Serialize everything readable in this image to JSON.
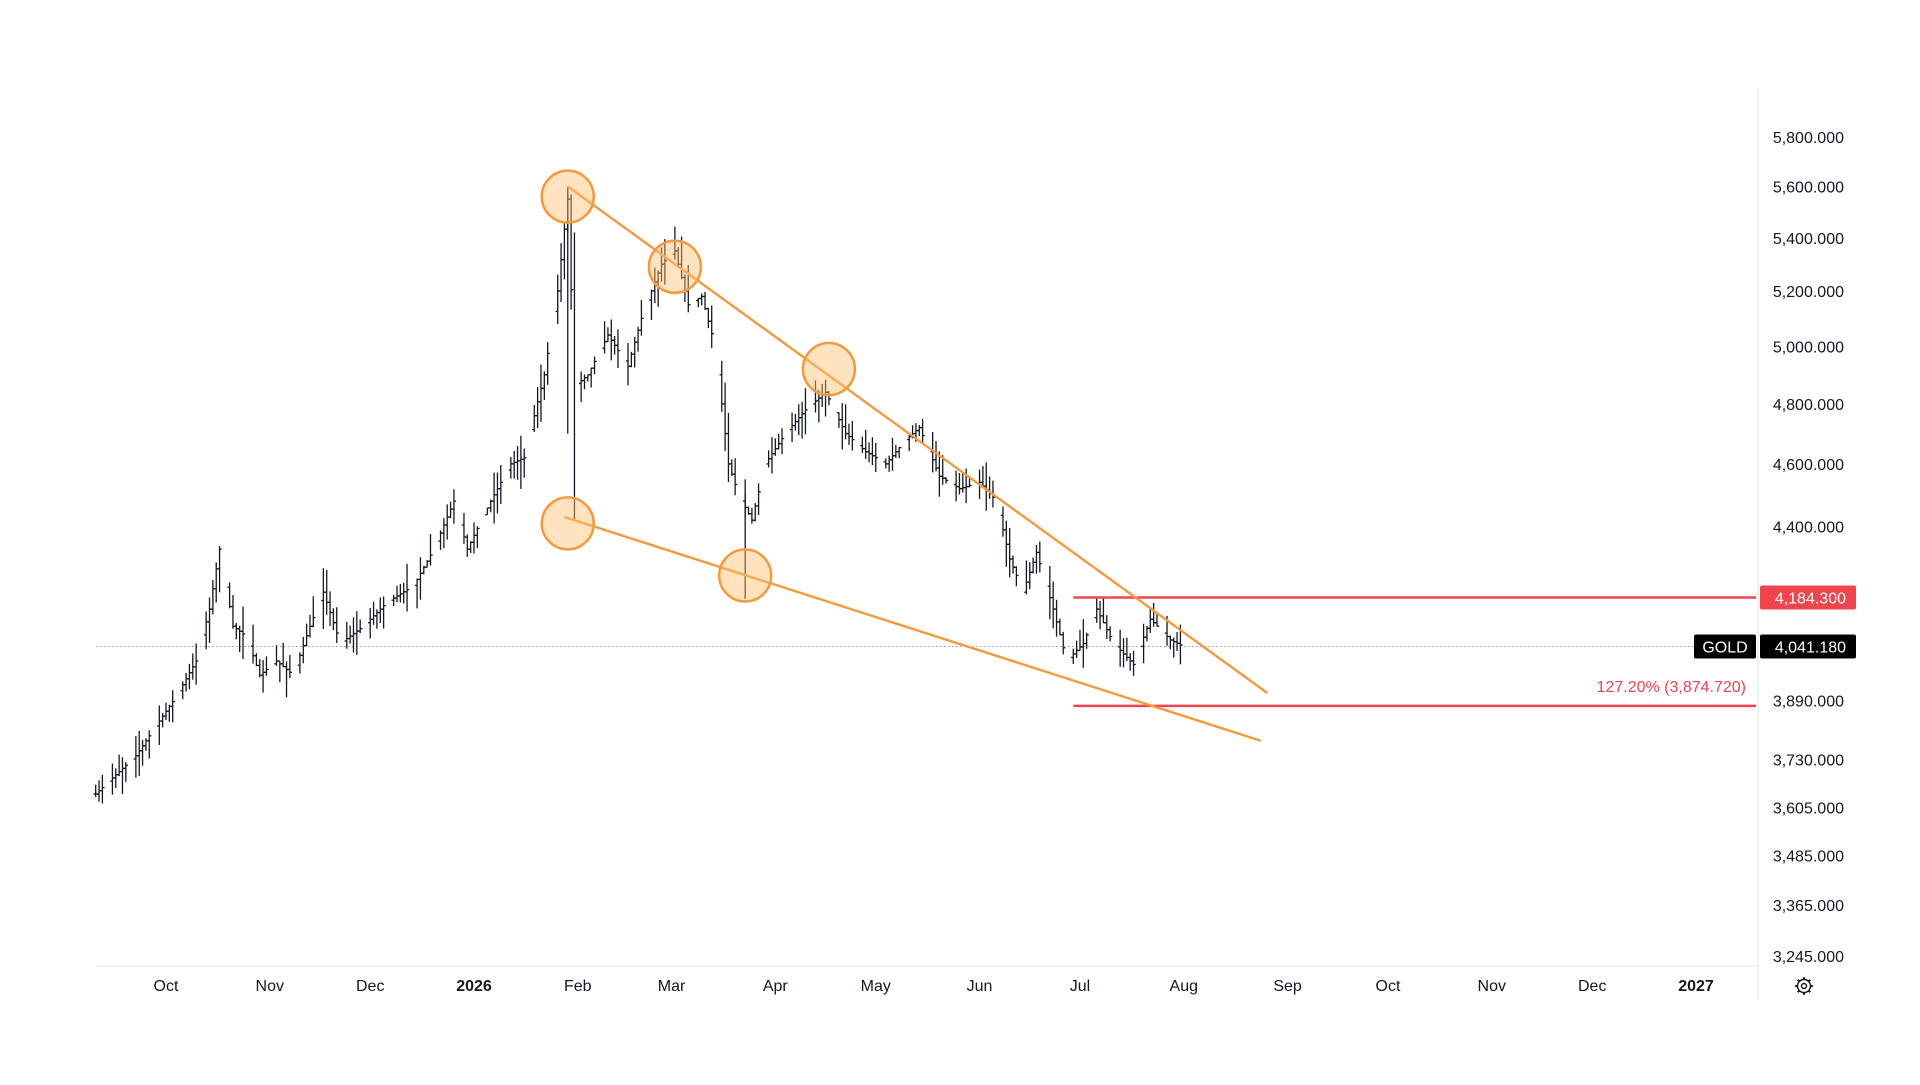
{
  "chart_data": {
    "type": "ohlc",
    "symbol": "GOLD",
    "price_scale": "log",
    "y_ticks": [
      "5,800.000",
      "5,600.000",
      "5,400.000",
      "5,200.000",
      "5,000.000",
      "4,800.000",
      "4,600.000",
      "4,400.000",
      "3,890.000",
      "3,730.000",
      "3,605.000",
      "3,485.000",
      "3,365.000",
      "3,245.000"
    ],
    "y_tick_values": [
      5800,
      5600,
      5400,
      5200,
      5000,
      4800,
      4600,
      4400,
      3890,
      3730,
      3605,
      3485,
      3365,
      3245
    ],
    "x_ticks": [
      {
        "label": "Oct",
        "date": "2025-10-01",
        "bold": false
      },
      {
        "label": "Nov",
        "date": "2025-11-01",
        "bold": false
      },
      {
        "label": "Dec",
        "date": "2025-12-01",
        "bold": false
      },
      {
        "label": "2026",
        "date": "2026-01-01",
        "bold": true
      },
      {
        "label": "Feb",
        "date": "2026-02-01",
        "bold": false
      },
      {
        "label": "Mar",
        "date": "2026-03-01",
        "bold": false
      },
      {
        "label": "Apr",
        "date": "2026-04-01",
        "bold": false
      },
      {
        "label": "May",
        "date": "2026-05-01",
        "bold": false
      },
      {
        "label": "Jun",
        "date": "2026-06-01",
        "bold": false
      },
      {
        "label": "Jul",
        "date": "2026-07-01",
        "bold": false
      },
      {
        "label": "Aug",
        "date": "2026-08-01",
        "bold": false
      },
      {
        "label": "Sep",
        "date": "2026-09-01",
        "bold": false
      },
      {
        "label": "Oct",
        "date": "2026-10-01",
        "bold": false
      },
      {
        "label": "Nov",
        "date": "2026-11-01",
        "bold": false
      },
      {
        "label": "Dec",
        "date": "2026-12-01",
        "bold": false
      },
      {
        "label": "2027",
        "date": "2027-01-01",
        "bold": true
      }
    ],
    "price_path": [
      [
        "2025-09-10",
        3640
      ],
      [
        "2025-09-16",
        3690
      ],
      [
        "2025-09-22",
        3740
      ],
      [
        "2025-09-28",
        3820
      ],
      [
        "2025-10-04",
        3900
      ],
      [
        "2025-10-10",
        4000
      ],
      [
        "2025-10-14",
        4150
      ],
      [
        "2025-10-17",
        4330
      ],
      [
        "2025-10-21",
        4100
      ],
      [
        "2025-10-25",
        4070
      ],
      [
        "2025-10-29",
        3960
      ],
      [
        "2025-11-03",
        4000
      ],
      [
        "2025-11-08",
        3960
      ],
      [
        "2025-11-13",
        4100
      ],
      [
        "2025-11-17",
        4200
      ],
      [
        "2025-11-22",
        4050
      ],
      [
        "2025-11-29",
        4100
      ],
      [
        "2025-12-06",
        4170
      ],
      [
        "2025-12-14",
        4220
      ],
      [
        "2025-12-20",
        4330
      ],
      [
        "2025-12-26",
        4480
      ],
      [
        "2025-12-30",
        4330
      ],
      [
        "2026-01-06",
        4480
      ],
      [
        "2026-01-12",
        4600
      ],
      [
        "2026-01-16",
        4620
      ],
      [
        "2026-01-22",
        4900
      ],
      [
        "2026-01-26",
        5200
      ],
      [
        "2026-01-29",
        5550
      ],
      [
        "2026-01-31",
        4860
      ],
      [
        "2026-02-04",
        4900
      ],
      [
        "2026-02-10",
        5040
      ],
      [
        "2026-02-16",
        4930
      ],
      [
        "2026-02-20",
        5100
      ],
      [
        "2026-02-26",
        5300
      ],
      [
        "2026-03-02",
        5350
      ],
      [
        "2026-03-06",
        5150
      ],
      [
        "2026-03-10",
        5180
      ],
      [
        "2026-03-14",
        5000
      ],
      [
        "2026-03-18",
        4600
      ],
      [
        "2026-03-21",
        4500
      ],
      [
        "2026-03-25",
        4420
      ],
      [
        "2026-03-29",
        4600
      ],
      [
        "2026-04-04",
        4700
      ],
      [
        "2026-04-10",
        4780
      ],
      [
        "2026-04-16",
        4840
      ],
      [
        "2026-04-22",
        4700
      ],
      [
        "2026-04-28",
        4640
      ],
      [
        "2026-05-04",
        4600
      ],
      [
        "2026-05-10",
        4680
      ],
      [
        "2026-05-14",
        4720
      ],
      [
        "2026-05-20",
        4560
      ],
      [
        "2026-05-26",
        4520
      ],
      [
        "2026-06-01",
        4540
      ],
      [
        "2026-06-06",
        4480
      ],
      [
        "2026-06-10",
        4300
      ],
      [
        "2026-06-14",
        4200
      ],
      [
        "2026-06-18",
        4320
      ],
      [
        "2026-06-23",
        4150
      ],
      [
        "2026-06-27",
        4000
      ],
      [
        "2026-07-02",
        4050
      ],
      [
        "2026-07-06",
        4150
      ],
      [
        "2026-07-11",
        4050
      ],
      [
        "2026-07-17",
        3990
      ],
      [
        "2026-07-22",
        4120
      ],
      [
        "2026-07-28",
        4060
      ],
      [
        "2026-08-01",
        4041
      ]
    ],
    "trendlines": [
      {
        "name": "upper",
        "color": "#f59a3c",
        "from": [
          "2026-01-29",
          5600
        ],
        "to": [
          "2026-08-26",
          3910
        ]
      },
      {
        "name": "lower",
        "color": "#f59a3c",
        "from": [
          "2026-01-28",
          4430
        ],
        "to": [
          "2026-08-24",
          3780
        ]
      }
    ],
    "touch_points": [
      [
        "2026-01-29",
        5560
      ],
      [
        "2026-03-02",
        5290
      ],
      [
        "2026-04-17",
        4920
      ],
      [
        "2026-01-29",
        4410
      ],
      [
        "2026-03-23",
        4250
      ]
    ],
    "horizontal_levels": [
      {
        "value": 4184.3,
        "label": "4,184.300",
        "color": "#f0444f",
        "from": "2026-06-29"
      },
      {
        "value": 3874.72,
        "label": "127.20% (3,874.720)",
        "color": "#f0444f",
        "from": "2026-06-29"
      }
    ],
    "last_price": {
      "symbol": "GOLD",
      "value": 4041.18,
      "label": "4,041.180"
    }
  },
  "icons": {
    "settings": "gear-icon"
  }
}
